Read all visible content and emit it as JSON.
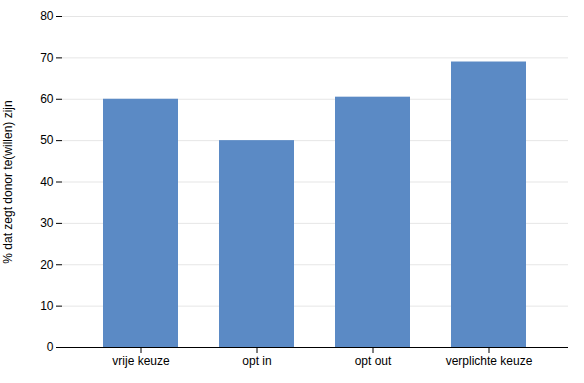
{
  "chart_data": {
    "type": "bar",
    "categories": [
      "vrije keuze",
      "opt in",
      "opt out",
      "verplichte keuze"
    ],
    "values": [
      60,
      50,
      60.5,
      69
    ],
    "color": "#5b8ac5",
    "ylabel": "% dat zegt donor te(willen) zijn",
    "ylim": [
      0,
      80
    ],
    "yticks": [
      0,
      10,
      20,
      30,
      40,
      50,
      60,
      70,
      80
    ],
    "grid": true
  }
}
